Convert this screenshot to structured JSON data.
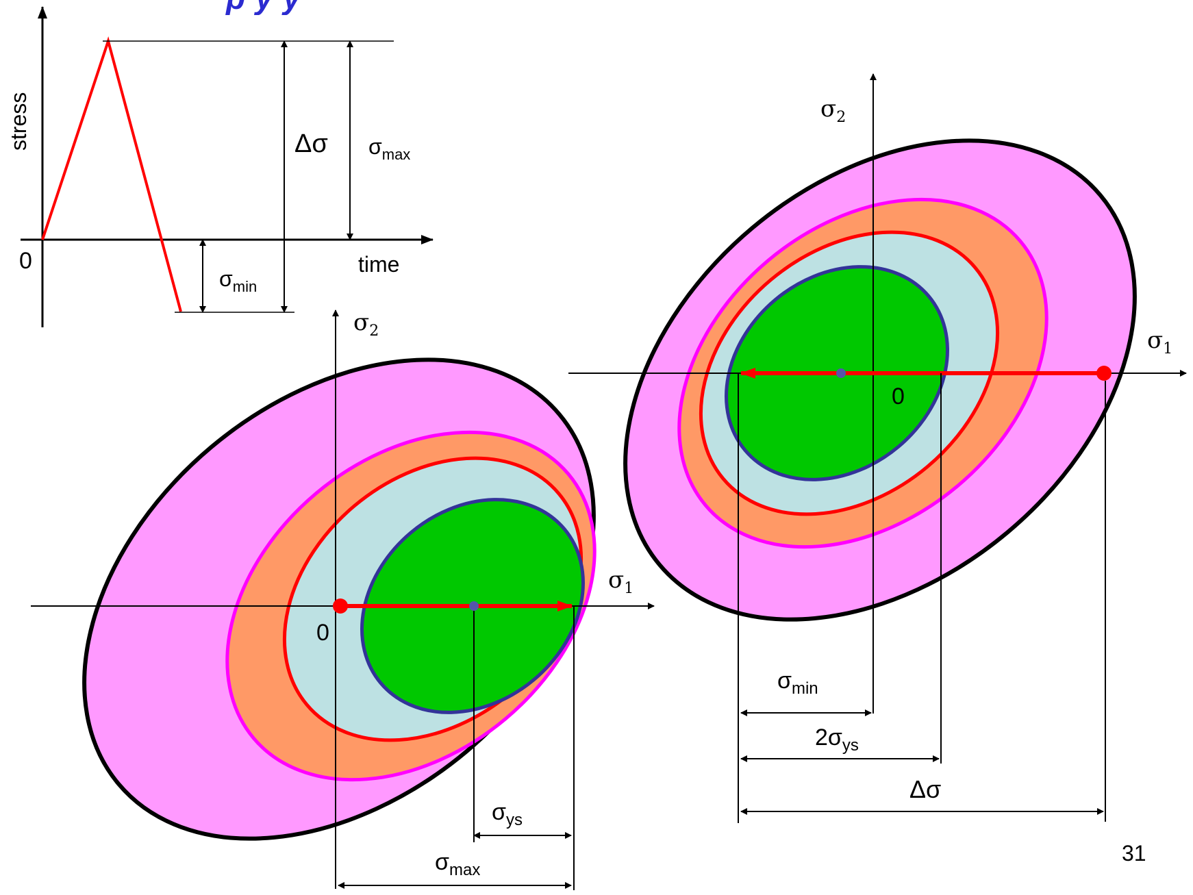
{
  "title_fragment": "p                y                                                    y",
  "stress_time_plot": {
    "ylabel": "stress",
    "xlabel": "time",
    "origin_label": "0",
    "delta_sigma_label": "Δσ",
    "sigma_max_label": {
      "base": "σ",
      "sub": "max"
    },
    "sigma_min_label": {
      "base": "σ",
      "sub": "min"
    }
  },
  "left_diagram": {
    "axis_x_label": {
      "base": "σ",
      "sub": "1"
    },
    "axis_y_label": {
      "base": "σ",
      "sub": "2"
    },
    "origin_label": "0",
    "sigma_ys_label": {
      "base": "σ",
      "sub": "ys"
    },
    "sigma_max_label": {
      "base": "σ",
      "sub": "max"
    }
  },
  "right_diagram": {
    "axis_x_label": {
      "base": "σ",
      "sub": "1"
    },
    "axis_y_label": {
      "base": "σ",
      "sub": "2"
    },
    "origin_label": "0",
    "sigma_min_label": {
      "base": "σ",
      "sub": "min"
    },
    "two_sigma_ys_label": {
      "base": "2σ",
      "sub": "ys"
    },
    "delta_sigma_label": "Δσ"
  },
  "page_number": "31",
  "colors": {
    "outer_fill": "#ff99ff",
    "magenta_ring": "#ff00ff",
    "orange_fill": "#ff9966",
    "red_ring": "#ff0000",
    "lightblue_fill": "#bde1e3",
    "green_fill": "#00c800",
    "navy_ring": "#333399",
    "black": "#000000",
    "title_blue": "#2b2bd0"
  }
}
